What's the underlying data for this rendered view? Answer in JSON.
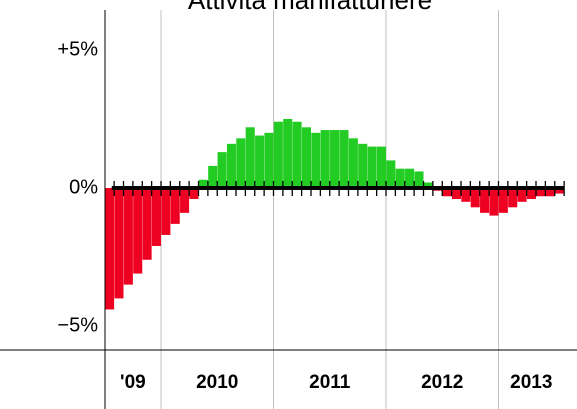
{
  "chart_data": {
    "type": "bar",
    "title": "Attività manifatturiere",
    "categories": [
      null,
      null,
      null,
      null,
      null,
      null,
      null,
      null,
      null,
      null,
      null,
      null,
      null,
      null,
      null,
      null,
      null,
      null,
      null,
      null,
      null,
      null,
      null,
      null,
      null,
      null,
      null,
      null,
      null,
      null,
      null,
      null,
      null,
      null,
      null,
      null,
      null,
      null,
      null,
      null,
      null,
      null,
      null,
      null,
      null,
      null,
      null,
      null,
      null
    ],
    "values": [
      -4.4,
      -4.0,
      -3.5,
      -3.1,
      -2.6,
      -2.1,
      -1.7,
      -1.3,
      -0.9,
      -0.4,
      0.3,
      0.8,
      1.3,
      1.6,
      1.8,
      2.2,
      1.9,
      2.0,
      2.4,
      2.5,
      2.4,
      2.2,
      2.0,
      2.1,
      2.1,
      2.1,
      1.8,
      1.6,
      1.5,
      1.5,
      1.0,
      0.7,
      0.7,
      0.6,
      0.2,
      -0.1,
      -0.3,
      -0.4,
      -0.5,
      -0.7,
      -0.9,
      -1.0,
      -0.9,
      -0.7,
      -0.5,
      -0.4,
      -0.3,
      -0.3,
      -0.2
    ],
    "positive_color": "#22cc22",
    "negative_color": "#ee0022",
    "ylim": [
      -5,
      5
    ],
    "yticks": [
      {
        "value": 5,
        "label": "+5%"
      },
      {
        "value": 0,
        "label": "0%"
      },
      {
        "value": -5,
        "label": "−5%"
      }
    ],
    "year_labels": [
      {
        "value": 0,
        "label": "'09"
      },
      {
        "value": 6,
        "label": "2010"
      },
      {
        "value": 18,
        "label": "2011"
      },
      {
        "value": 30,
        "label": "2012"
      },
      {
        "value": 42,
        "label": "2013"
      }
    ]
  }
}
